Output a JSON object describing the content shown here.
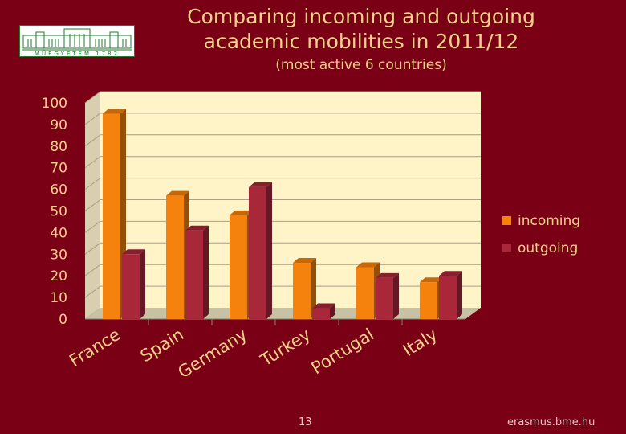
{
  "logo": {
    "text": "MŰEGYETEM 1782"
  },
  "header": {
    "title_line1": "Comparing incoming and outgoing",
    "title_line2": "academic mobilities in 2011/12",
    "subtitle": "(most active 6 countries)"
  },
  "footer": {
    "page_number": "13",
    "site": "erasmus.bme.hu"
  },
  "chart_data": {
    "type": "bar",
    "categories": [
      "France",
      "Spain",
      "Germany",
      "Turkey",
      "Portugal",
      "Italy"
    ],
    "series": [
      {
        "name": "incoming",
        "values": [
          95,
          57,
          48,
          26,
          24,
          17
        ],
        "color": "#f5820d"
      },
      {
        "name": "outgoing",
        "values": [
          30,
          41,
          61,
          5,
          19,
          20
        ],
        "color": "#a8283a"
      }
    ],
    "ylim": [
      0,
      100
    ],
    "yticks": [
      0,
      10,
      20,
      30,
      40,
      50,
      60,
      70,
      80,
      90,
      100
    ],
    "grid": true,
    "legend": "right",
    "colors": {
      "background": "#7a0016",
      "plot_background": "#fff3c8",
      "text": "#f2d18a"
    }
  }
}
